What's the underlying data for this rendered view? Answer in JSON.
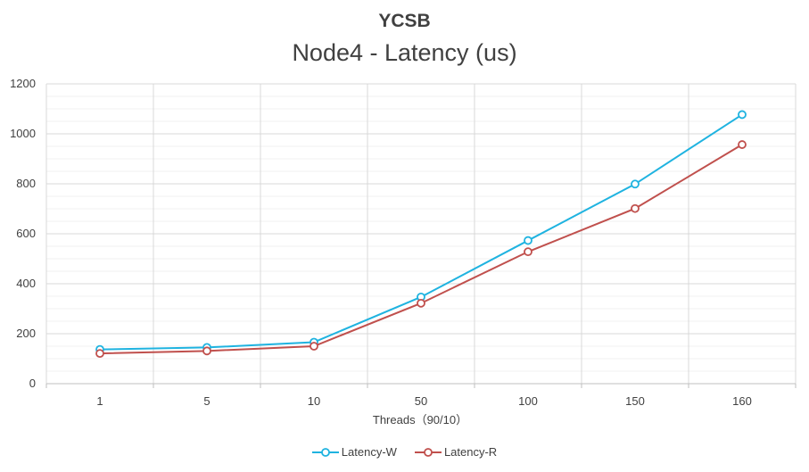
{
  "chart_data": {
    "type": "line",
    "title": "YCSB",
    "subtitle": "Node4 - Latency (us)",
    "xlabel": "Threads（90/10）",
    "ylabel": "",
    "categories": [
      "1",
      "5",
      "10",
      "50",
      "100",
      "150",
      "160"
    ],
    "ylim": [
      0,
      1200
    ],
    "yticks": [
      0,
      200,
      400,
      600,
      800,
      1000,
      1200
    ],
    "grid": true,
    "legend_position": "bottom",
    "series": [
      {
        "name": "Latency-W",
        "color": "#1fb3e0",
        "values": [
          137,
          145,
          166,
          347,
          573,
          799,
          1077
        ]
      },
      {
        "name": "Latency-R",
        "color": "#c0504d",
        "values": [
          121,
          131,
          150,
          322,
          528,
          701,
          957
        ]
      }
    ]
  }
}
